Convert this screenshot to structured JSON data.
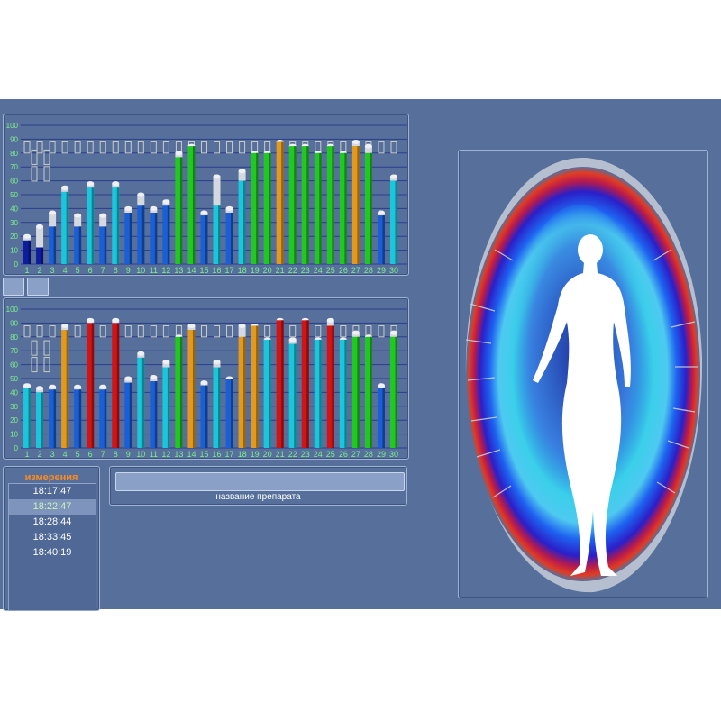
{
  "colors": {
    "app_bg": "#56709b",
    "bar_cyan": "#19c6dc",
    "bar_blue": "#1a5fd6",
    "bar_darkblue": "#0d1d9e",
    "bar_green": "#22c822",
    "bar_orange": "#e39a1c",
    "bar_red": "#d31414",
    "norm_marker": "#ccccc4",
    "tick_label": "#7df08a"
  },
  "charts": {
    "top": {
      "chart_data": {
        "type": "bar",
        "y_ticks": [
          "0",
          "10",
          "20",
          "30",
          "40",
          "50",
          "60",
          "70",
          "80",
          "90",
          "100"
        ],
        "ylim": [
          0,
          100
        ],
        "grid": true,
        "categories": [
          "1",
          "2",
          "3",
          "4",
          "5",
          "6",
          "7",
          "8",
          "9",
          "10",
          "11",
          "12",
          "13",
          "14",
          "15",
          "16",
          "17",
          "18",
          "19",
          "20",
          "21",
          "22",
          "23",
          "24",
          "25",
          "26",
          "27",
          "28",
          "29",
          "30"
        ],
        "values": [
          17,
          12,
          27,
          52,
          27,
          55,
          27,
          55,
          37,
          42,
          37,
          42,
          77,
          85,
          35,
          42,
          37,
          60,
          80,
          80,
          88,
          85,
          85,
          80,
          85,
          80,
          85,
          80,
          35,
          60
        ],
        "caps": [
          20,
          27,
          37,
          55,
          35,
          58,
          35,
          58,
          40,
          50,
          40,
          45,
          80,
          85,
          37,
          63,
          40,
          67,
          80,
          80,
          88,
          85,
          85,
          80,
          85,
          80,
          88,
          85,
          37,
          63
        ],
        "colors": [
          "darkblue",
          "darkblue",
          "blue",
          "cyan",
          "blue",
          "cyan",
          "blue",
          "cyan",
          "blue",
          "blue",
          "blue",
          "blue",
          "green",
          "green",
          "blue",
          "cyan",
          "blue",
          "cyan",
          "green",
          "green",
          "orange",
          "green",
          "green",
          "green",
          "green",
          "green",
          "orange",
          "green",
          "blue",
          "cyan"
        ],
        "norm_upper": 88,
        "norm_lower": 80,
        "side_markers_y": [
          65,
          77
        ]
      }
    },
    "bottom": {
      "chart_data": {
        "type": "bar",
        "y_ticks": [
          "0",
          "10",
          "20",
          "30",
          "40",
          "50",
          "60",
          "70",
          "80",
          "90",
          "100"
        ],
        "ylim": [
          0,
          100
        ],
        "grid": true,
        "categories": [
          "1",
          "2",
          "3",
          "4",
          "5",
          "6",
          "7",
          "8",
          "9",
          "10",
          "11",
          "12",
          "13",
          "14",
          "15",
          "16",
          "17",
          "18",
          "19",
          "20",
          "21",
          "22",
          "23",
          "24",
          "25",
          "26",
          "27",
          "28",
          "29",
          "30"
        ],
        "values": [
          43,
          40,
          42,
          85,
          42,
          90,
          42,
          90,
          47,
          65,
          48,
          58,
          80,
          85,
          45,
          58,
          50,
          80,
          88,
          78,
          92,
          75,
          92,
          78,
          88,
          78,
          80,
          80,
          43,
          80
        ],
        "caps": [
          45,
          43,
          44,
          88,
          44,
          92,
          44,
          92,
          50,
          68,
          51,
          62,
          80,
          88,
          47,
          62,
          50,
          88,
          88,
          78,
          92,
          78,
          92,
          78,
          92,
          78,
          83,
          80,
          45,
          83
        ],
        "colors": [
          "cyan",
          "cyan",
          "blue",
          "orange",
          "blue",
          "red",
          "blue",
          "red",
          "blue",
          "cyan",
          "blue",
          "cyan",
          "green",
          "orange",
          "blue",
          "cyan",
          "blue",
          "orange",
          "orange",
          "cyan",
          "red",
          "cyan",
          "red",
          "cyan",
          "red",
          "cyan",
          "green",
          "green",
          "blue",
          "green"
        ],
        "norm_upper": 88,
        "norm_lower": 80,
        "side_markers_y": [
          60,
          72
        ]
      }
    }
  },
  "measurements": {
    "title": "измерения",
    "items": [
      "18:17:47",
      "18:22:47",
      "18:28:44",
      "18:33:45",
      "18:40:19"
    ],
    "selected_index": 1
  },
  "drug": {
    "label": "название препарата",
    "value": ""
  },
  "aura": {
    "figure": "female-silhouette"
  }
}
